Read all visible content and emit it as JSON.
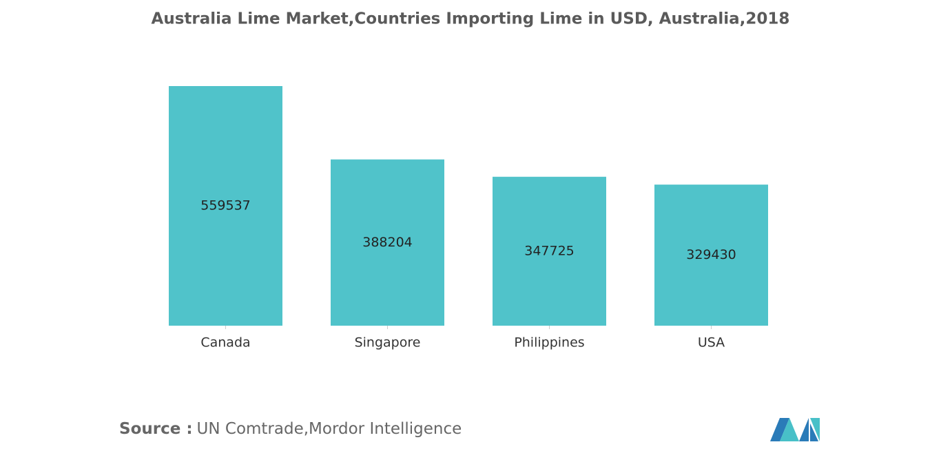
{
  "chart_data": {
    "type": "bar",
    "title": "Australia Lime Market,Countries Importing Lime in USD, Australia,2018",
    "categories": [
      "Canada",
      "Singapore",
      "Philippines",
      "USA"
    ],
    "values": [
      559537,
      388204,
      347725,
      329430
    ],
    "color": "#50c3ca",
    "source_label": "Source :",
    "source": "UN Comtrade,Mordor Intelligence"
  }
}
